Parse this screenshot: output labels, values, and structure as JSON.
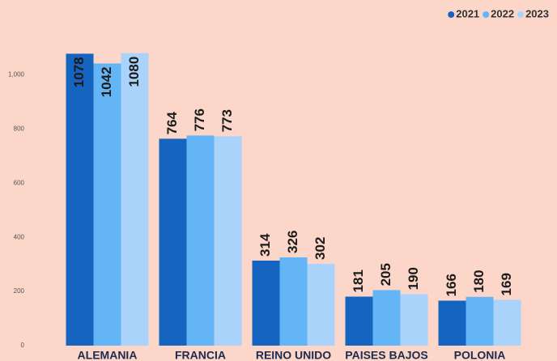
{
  "chart_data": {
    "type": "bar",
    "categories": [
      "ALEMANIA",
      "FRANCIA",
      "REINO UNIDO",
      "PAISES BAJOS",
      "POLONIA"
    ],
    "series": [
      {
        "name": "2021",
        "color": "#1565c0",
        "values": [
          1078,
          764,
          314,
          181,
          166
        ]
      },
      {
        "name": "2022",
        "color": "#64b5f6",
        "values": [
          1042,
          776,
          326,
          205,
          180
        ]
      },
      {
        "name": "2023",
        "color": "#a9d3fb",
        "values": [
          1080,
          773,
          302,
          190,
          169
        ]
      }
    ],
    "ylim": [
      0,
      1100
    ],
    "yticks": [
      0,
      200,
      400,
      600,
      800,
      {
        "value": 1000,
        "label": "1,000"
      }
    ],
    "grid": false,
    "legend": "top-right"
  }
}
